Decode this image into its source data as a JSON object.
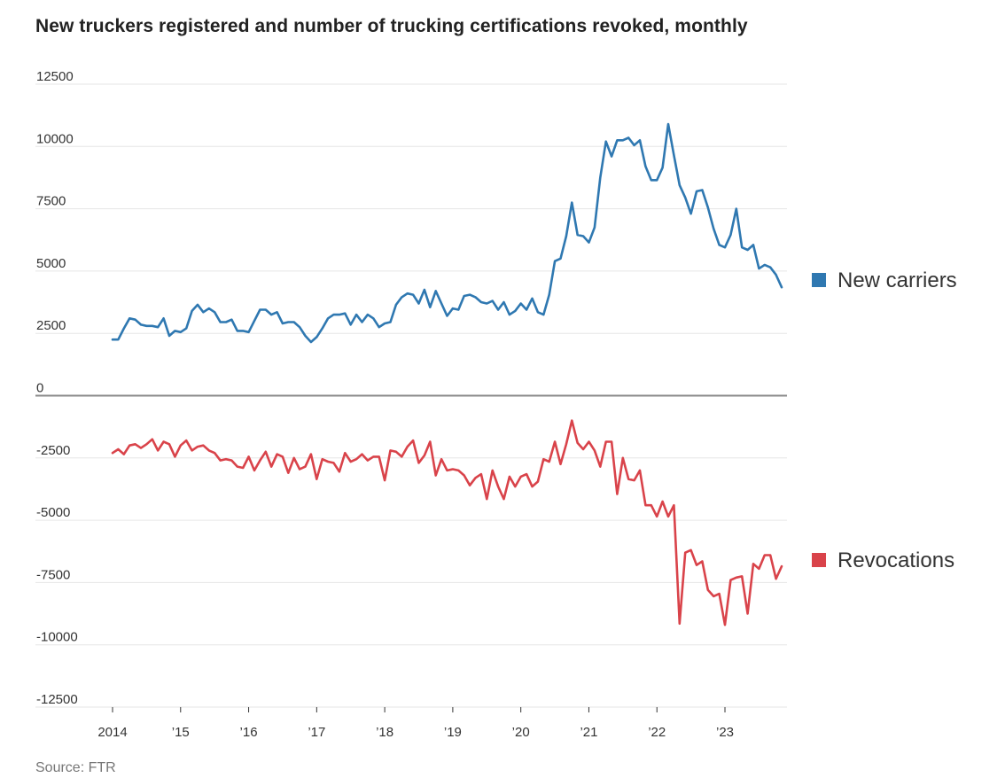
{
  "title": "New truckers registered and number of trucking certifications revoked, monthly",
  "source": "Source: FTR",
  "chart_data": {
    "type": "line",
    "title": "New truckers registered and number of trucking certifications revoked, monthly",
    "xlabel": "",
    "ylabel": "",
    "ylim": [
      -12500,
      12500
    ],
    "yticks": [
      12500,
      10000,
      7500,
      5000,
      2500,
      0,
      -2500,
      -5000,
      -7500,
      -10000,
      -12500
    ],
    "ytick_labels": [
      "12500",
      "10000",
      "7500",
      "5000",
      "2500",
      "0",
      "-2500",
      "-5000",
      "-7500",
      "-10000",
      "-12500"
    ],
    "xticks": [
      2014,
      2015,
      2016,
      2017,
      2018,
      2019,
      2020,
      2021,
      2022,
      2023
    ],
    "xtick_labels": [
      "2014",
      "’15",
      "’16",
      "’17",
      "’18",
      "’19",
      "’20",
      "’21",
      "’22",
      "’23"
    ],
    "grid": true,
    "legend_position": "right",
    "x_start": "2014-01",
    "series": [
      {
        "name": "New carriers",
        "color": "#2f78b1",
        "values": [
          2250,
          2250,
          2700,
          3100,
          3050,
          2850,
          2800,
          2800,
          2750,
          3100,
          2400,
          2600,
          2550,
          2700,
          3400,
          3650,
          3350,
          3500,
          3350,
          2950,
          2950,
          3050,
          2600,
          2600,
          2550,
          3000,
          3450,
          3450,
          3250,
          3350,
          2900,
          2950,
          2950,
          2750,
          2400,
          2150,
          2350,
          2700,
          3100,
          3250,
          3250,
          3300,
          2850,
          3250,
          2950,
          3250,
          3100,
          2750,
          2900,
          2950,
          3650,
          3950,
          4100,
          4050,
          3700,
          4250,
          3550,
          4200,
          3700,
          3200,
          3500,
          3450,
          4000,
          4050,
          3950,
          3750,
          3700,
          3800,
          3450,
          3750,
          3250,
          3400,
          3700,
          3450,
          3900,
          3350,
          3250,
          4050,
          5400,
          5500,
          6400,
          7750,
          6450,
          6400,
          6150,
          6750,
          8750,
          10200,
          9600,
          10250,
          10250,
          10350,
          10050,
          10250,
          9200,
          8650,
          8650,
          9150,
          10900,
          9650,
          8450,
          7950,
          7300,
          8200,
          8250,
          7550,
          6700,
          6050,
          5950,
          6450,
          7500,
          5950,
          5850,
          6050,
          5100,
          5250,
          5150,
          4850,
          4350
        ]
      },
      {
        "name": "Revocations",
        "color": "#d9434a",
        "values": [
          -2300,
          -2150,
          -2350,
          -2000,
          -1950,
          -2100,
          -1950,
          -1750,
          -2200,
          -1850,
          -1950,
          -2450,
          -2000,
          -1800,
          -2200,
          -2050,
          -2000,
          -2200,
          -2300,
          -2600,
          -2550,
          -2600,
          -2850,
          -2900,
          -2450,
          -3000,
          -2600,
          -2250,
          -2850,
          -2350,
          -2450,
          -3100,
          -2500,
          -2950,
          -2850,
          -2350,
          -3350,
          -2550,
          -2650,
          -2700,
          -3050,
          -2300,
          -2650,
          -2550,
          -2350,
          -2600,
          -2450,
          -2450,
          -3400,
          -2200,
          -2250,
          -2450,
          -2050,
          -1800,
          -2700,
          -2400,
          -1850,
          -3200,
          -2550,
          -3000,
          -2950,
          -3000,
          -3200,
          -3600,
          -3300,
          -3150,
          -4150,
          -3000,
          -3650,
          -4150,
          -3250,
          -3650,
          -3250,
          -3150,
          -3650,
          -3450,
          -2550,
          -2650,
          -1850,
          -2750,
          -1950,
          -1000,
          -1900,
          -2150,
          -1850,
          -2200,
          -2850,
          -1850,
          -1850,
          -3950,
          -2500,
          -3350,
          -3400,
          -3000,
          -4400,
          -4400,
          -4850,
          -4250,
          -4850,
          -4400,
          -9150,
          -6300,
          -6200,
          -6800,
          -6650,
          -7800,
          -8050,
          -7950,
          -9200,
          -7400,
          -7300,
          -7250,
          -8750,
          -6750,
          -6950,
          -6400,
          -6400,
          -7350,
          -6850
        ]
      }
    ]
  }
}
